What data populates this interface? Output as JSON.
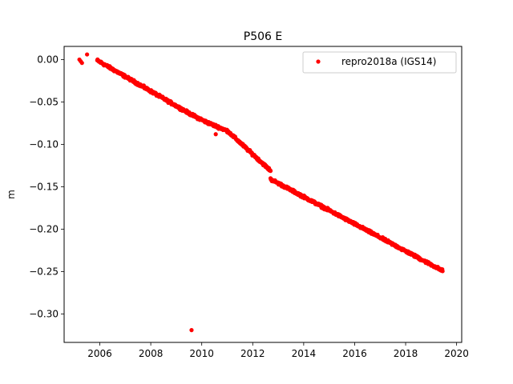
{
  "chart_data": {
    "type": "scatter",
    "title": "P506 E",
    "xlabel": "",
    "ylabel": "m",
    "xlim": [
      2004.6,
      2020.2
    ],
    "ylim": [
      -0.3335,
      0.0155
    ],
    "x_ticks": [
      2006,
      2008,
      2010,
      2012,
      2014,
      2016,
      2018,
      2020
    ],
    "x_tick_labels": [
      "2006",
      "2008",
      "2010",
      "2012",
      "2014",
      "2016",
      "2018",
      "2020"
    ],
    "y_ticks": [
      0.0,
      -0.05,
      -0.1,
      -0.15,
      -0.2,
      -0.25,
      -0.3
    ],
    "y_tick_labels": [
      "0.00",
      "−0.05",
      "−0.10",
      "−0.15",
      "−0.20",
      "−0.25",
      "−0.30"
    ],
    "grid": false,
    "legend": {
      "placement": "top-right",
      "entries": [
        "repro2018a (IGS14)"
      ]
    },
    "series": [
      {
        "name": "repro2018a (IGS14)",
        "color": "#ff0000",
        "marker": "circle",
        "trend_segments": [
          {
            "x": [
              2005.9,
              2009.6
            ],
            "y": [
              -0.001,
              -0.065
            ]
          },
          {
            "x": [
              2009.6,
              2010.2
            ],
            "y": [
              -0.065,
              -0.074
            ]
          },
          {
            "x": [
              2010.2,
              2011.0
            ],
            "y": [
              -0.074,
              -0.084
            ]
          },
          {
            "x": [
              2011.0,
              2012.7
            ],
            "y": [
              -0.084,
              -0.131
            ]
          },
          {
            "x": [
              2012.7,
              2019.45
            ],
            "y": [
              -0.141,
              -0.249
            ]
          }
        ],
        "outliers": [
          {
            "x": 2005.2,
            "y": 0.0
          },
          {
            "x": 2005.25,
            "y": -0.002
          },
          {
            "x": 2005.3,
            "y": -0.004
          },
          {
            "x": 2005.5,
            "y": 0.006
          },
          {
            "x": 2010.55,
            "y": -0.088
          },
          {
            "x": 2009.6,
            "y": -0.319
          }
        ]
      }
    ]
  }
}
